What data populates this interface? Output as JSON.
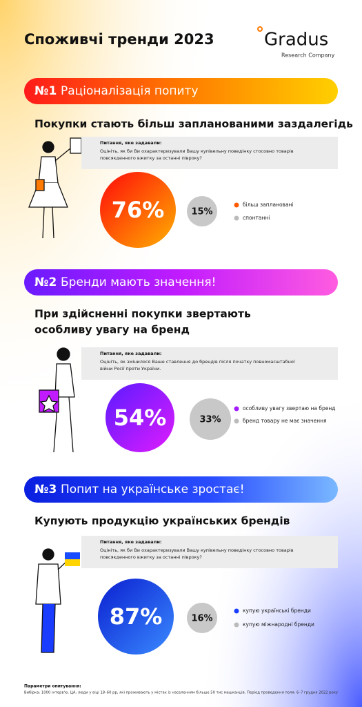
{
  "header": {
    "title": "Споживчі тренди 2023",
    "logo": "Gradus",
    "logo_sub": "Research Company"
  },
  "sections": [
    {
      "number": "№1",
      "title": "Раціоналізація попиту",
      "heading": [
        "Покупки стають більш запланованими заздалегідь"
      ],
      "question_label": "Питання, яке задавали:",
      "question": [
        "Оцініть, як би Ви охарактеризували Вашу купівельну поведінку стосовно товарів",
        "повсякденного вжитку за останні півроку?"
      ],
      "main_value": "76%",
      "other_value": "15%",
      "legend": [
        "більш заплановані",
        "спонтанні"
      ]
    },
    {
      "number": "№2",
      "title": "Бренди мають значення!",
      "heading": [
        "При здійсненні покупки звертають",
        "особливу увагу на бренд"
      ],
      "question_label": "Питання, яке задавали:",
      "question": [
        "Оцініть, як змінилося Ваше ставлення до брендів після початку повномасштабної",
        "війни Росії проти України."
      ],
      "main_value": "54%",
      "other_value": "33%",
      "legend": [
        "особливу увагу звертаю на бренд",
        "бренд товару не має значення"
      ]
    },
    {
      "number": "№3",
      "title": "Попит на українське зростає!",
      "heading": [
        "Купують продукцію українських брендів"
      ],
      "question_label": "Питання, яке задавали:",
      "question": [
        "Оцініть, як би Ви охарактеризували Вашу купівельну поведінку стосовно товарів",
        "повсякденного вжитку за останні півроку?"
      ],
      "main_value": "87%",
      "other_value": "16%",
      "legend": [
        "купую українські бренди",
        "купую міжнародні бренди"
      ]
    }
  ],
  "footer": {
    "label": "Параметри опитування:",
    "text": "Вибірка: 1000 інтерв'ю. ЦА: люди у віці 18–60 рр, які проживають у містах із населенням більше 50 тис мешканців. Період проведення поля: 6–7 грудня 2022 року"
  }
}
